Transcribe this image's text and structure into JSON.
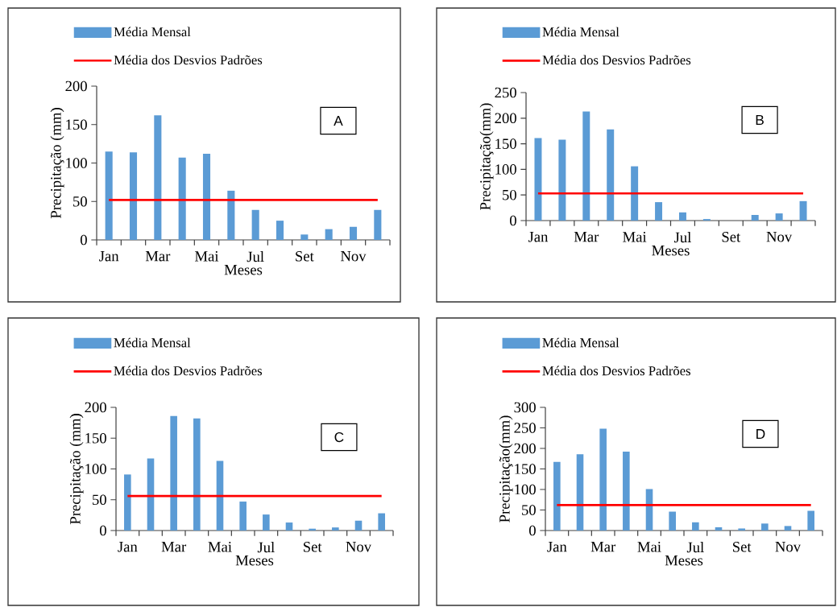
{
  "chart_data": [
    {
      "type": "bar",
      "categories": [
        "Jan",
        null,
        "Mar",
        null,
        "Mai",
        null,
        "Jul",
        null,
        "Set",
        null,
        "Nov",
        null
      ],
      "xlabel": "Meses",
      "ylabel": "Precipitação (mm)",
      "ylim": [
        0,
        200
      ],
      "yticks": [
        0,
        50,
        100,
        150,
        200
      ],
      "legend": "top",
      "annotations": [
        "A"
      ],
      "series": [
        {
          "name": "Média Mensal",
          "color": "#5b9bd5",
          "values": [
            115,
            114,
            162,
            107,
            112,
            64,
            39,
            25,
            7,
            14,
            17,
            39
          ]
        },
        {
          "name": "Média dos Desvios Padrões",
          "type": "line",
          "color": "#ff0000",
          "values": [
            52,
            52,
            52,
            52,
            52,
            52,
            52,
            52,
            52,
            52,
            52,
            52
          ]
        }
      ]
    },
    {
      "type": "bar",
      "categories": [
        "Jan",
        null,
        "Mar",
        null,
        "Mai",
        null,
        "Jul",
        null,
        "Set",
        null,
        "Nov",
        null
      ],
      "xlabel": "Meses",
      "ylabel": "Precipitação(mm)",
      "ylim": [
        0,
        250
      ],
      "yticks": [
        0,
        50,
        100,
        150,
        200,
        250
      ],
      "legend": "top",
      "annotations": [
        "B"
      ],
      "series": [
        {
          "name": "Média Mensal",
          "color": "#5b9bd5",
          "values": [
            161,
            158,
            213,
            178,
            106,
            36,
            16,
            3,
            0,
            11,
            14,
            38
          ]
        },
        {
          "name": "Média dos Desvios Padrões",
          "type": "line",
          "color": "#ff0000",
          "values": [
            53,
            53,
            53,
            53,
            53,
            53,
            53,
            53,
            53,
            53,
            53,
            53
          ]
        }
      ]
    },
    {
      "type": "bar",
      "categories": [
        "Jan",
        null,
        "Mar",
        null,
        "Mai",
        null,
        "Jul",
        null,
        "Set",
        null,
        "Nov",
        null
      ],
      "xlabel": "Meses",
      "ylabel": "Precipitação (mm)",
      "ylim": [
        0,
        200
      ],
      "yticks": [
        0,
        50,
        100,
        150,
        200
      ],
      "legend": "top",
      "annotations": [
        "C"
      ],
      "series": [
        {
          "name": "Média Mensal",
          "color": "#5b9bd5",
          "values": [
            91,
            117,
            186,
            182,
            113,
            47,
            26,
            13,
            3,
            5,
            16,
            28
          ]
        },
        {
          "name": "Média dos Desvios Padrões",
          "type": "line",
          "color": "#ff0000",
          "values": [
            56,
            56,
            56,
            56,
            56,
            56,
            56,
            56,
            56,
            56,
            56,
            56
          ]
        }
      ]
    },
    {
      "type": "bar",
      "categories": [
        "Jan",
        null,
        "Mar",
        null,
        "Mai",
        null,
        "Jul",
        null,
        "Set",
        null,
        "Nov",
        null
      ],
      "xlabel": "Meses",
      "ylabel": "Precipitação(mm)",
      "ylim": [
        0,
        300
      ],
      "yticks": [
        0,
        50,
        100,
        150,
        200,
        250,
        300
      ],
      "legend": "top",
      "annotations": [
        "D"
      ],
      "series": [
        {
          "name": "Média Mensal",
          "color": "#5b9bd5",
          "values": [
            167,
            186,
            248,
            192,
            101,
            46,
            20,
            8,
            5,
            17,
            11,
            48
          ]
        },
        {
          "name": "Média dos Desvios Padrões",
          "type": "line",
          "color": "#ff0000",
          "values": [
            62,
            62,
            62,
            62,
            62,
            62,
            62,
            62,
            62,
            62,
            62,
            62
          ]
        }
      ]
    }
  ]
}
